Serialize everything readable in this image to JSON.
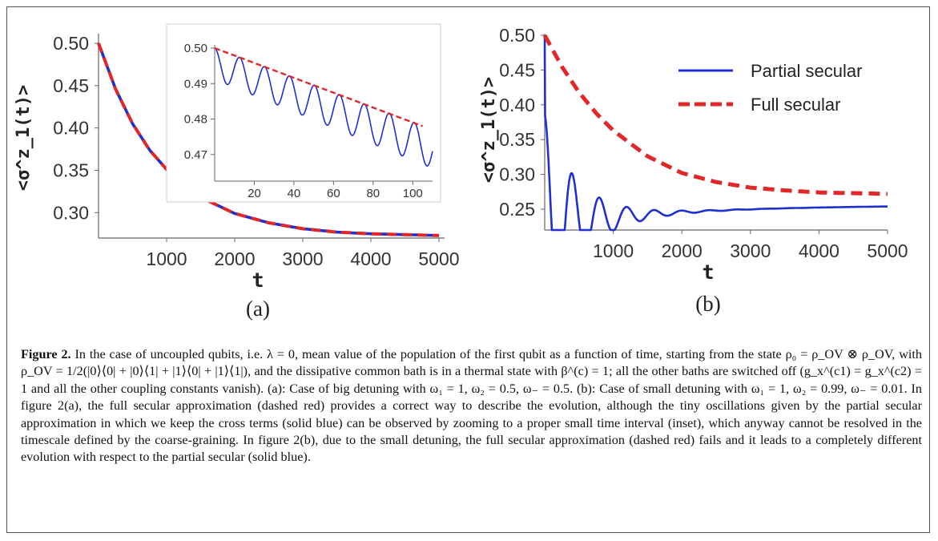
{
  "figure_label": "Figure 2.",
  "caption_text": "In the case of uncoupled qubits, i.e. λ = 0, mean value of the population of the first qubit as a function of time, starting from the state ρ₀ = ρ_OV ⊗ ρ_OV, with ρ_OV = 1/2(|0⟩⟨0| + |0⟩⟨1| + |1⟩⟨0| + |1⟩⟨1|), and the dissipative common bath is in a thermal state with β^(c) = 1; all the other baths are switched off (g_x^(c1) = g_x^(c2) = 1 and all the other coupling constants vanish). (a): Case of big detuning with ω₁ = 1, ω₂ = 0.5, ω₋ = 0.5. (b): Case of small detuning with ω₁ = 1, ω₂ = 0.99, ω₋ = 0.01. In figure 2(a), the full secular approximation (dashed red) provides a correct way to describe the evolution, although the tiny oscillations given by the partial secular approximation in which we keep the cross terms (solid blue) can be observed by zooming to a proper small time interval (inset), which anyway cannot be resolved in the timescale defined by the coarse-graining. In figure 2(b), due to the small detuning, the full secular approximation (dashed red) fails and it leads to a completely different evolution with respect to the partial secular (solid blue).",
  "colors": {
    "partial_secular": "#1f2fd0",
    "full_secular": "#e0282a",
    "axis": "#555555"
  },
  "chart_data": [
    {
      "id": "a-main",
      "panel": "(a)",
      "type": "line",
      "xlabel": "t",
      "ylabel": "<σ^z_1(t)>",
      "xlim": [
        0,
        5000
      ],
      "ylim": [
        0.27,
        0.5
      ],
      "x_ticks": [
        "1000",
        "2000",
        "3000",
        "4000",
        "5000"
      ],
      "y_ticks": [
        "0.30",
        "0.35",
        "0.40",
        "0.45",
        "0.50"
      ],
      "series": [
        {
          "style": "solid-blue",
          "t": [
            0,
            250,
            500,
            750,
            1000,
            1500,
            2000,
            2500,
            3000,
            3500,
            4000,
            4500,
            5000
          ],
          "values": [
            0.5,
            0.446,
            0.405,
            0.374,
            0.351,
            0.318,
            0.299,
            0.288,
            0.281,
            0.277,
            0.275,
            0.274,
            0.273
          ]
        },
        {
          "style": "dashed-red",
          "t": [
            0,
            250,
            500,
            750,
            1000,
            1500,
            2000,
            2500,
            3000,
            3500,
            4000,
            4500,
            5000
          ],
          "values": [
            0.5,
            0.446,
            0.405,
            0.374,
            0.351,
            0.318,
            0.299,
            0.288,
            0.281,
            0.277,
            0.275,
            0.274,
            0.273
          ]
        }
      ]
    },
    {
      "id": "a-inset",
      "panel": "(a) inset",
      "type": "line",
      "xlim": [
        0,
        110
      ],
      "ylim": [
        0.4625,
        0.5
      ],
      "x_ticks": [
        "20",
        "40",
        "60",
        "80",
        "100"
      ],
      "y_ticks": [
        "0.47",
        "0.48",
        "0.49",
        "0.50"
      ],
      "series": [
        {
          "style": "solid-blue",
          "t0": 0,
          "t1": 110,
          "envelope_start": 0.5,
          "envelope_decay_per_unit": 0.000208,
          "oscillation_period": 12.6,
          "oscillation_amplitude": 0.0055
        },
        {
          "style": "dashed-red",
          "t": [
            0,
            105
          ],
          "values": [
            0.5,
            0.478
          ]
        }
      ]
    },
    {
      "id": "b",
      "panel": "(b)",
      "type": "line",
      "xlabel": "t",
      "ylabel": "<σ^z_1(t)>",
      "xlim": [
        0,
        5000
      ],
      "ylim": [
        0.22,
        0.5
      ],
      "x_ticks": [
        "1000",
        "2000",
        "3000",
        "4000",
        "5000"
      ],
      "y_ticks": [
        "0.25",
        "0.30",
        "0.35",
        "0.40",
        "0.45",
        "0.50"
      ],
      "legend": {
        "position": "top-right",
        "entries": [
          "Partial secular",
          "Full secular"
        ]
      },
      "series": [
        {
          "name": "Partial secular",
          "style": "solid-blue",
          "t0": 0,
          "t1": 5000,
          "start": 0.5,
          "asymptote": 0.256,
          "envelope_tau": 480,
          "drift_start": 0.226,
          "drift_tau": 1900,
          "oscillation_period": 400,
          "oscillation_amplitude": 0.16
        },
        {
          "name": "Full secular",
          "style": "dashed-red",
          "t": [
            0,
            250,
            500,
            750,
            1000,
            1500,
            2000,
            2500,
            3000,
            3500,
            4000,
            4500,
            5000
          ],
          "values": [
            0.5,
            0.455,
            0.418,
            0.388,
            0.363,
            0.326,
            0.302,
            0.289,
            0.281,
            0.277,
            0.274,
            0.273,
            0.272
          ]
        }
      ]
    }
  ]
}
